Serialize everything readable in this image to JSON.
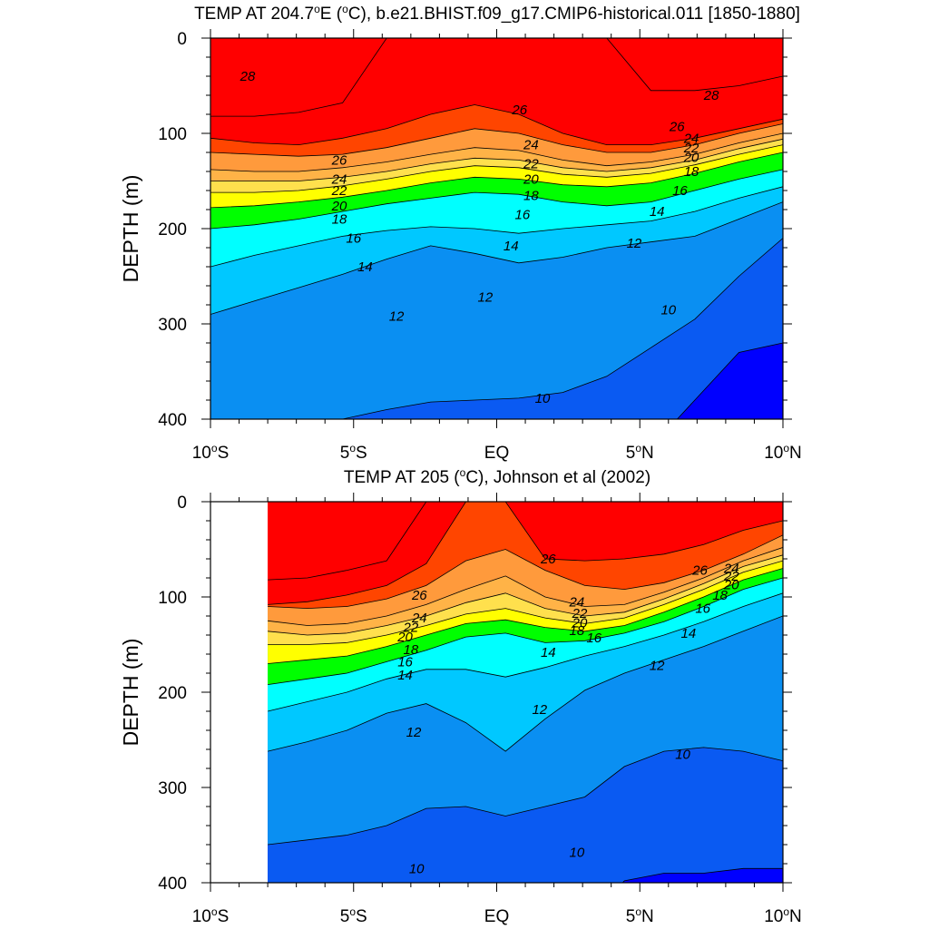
{
  "chart_data": [
    {
      "type": "contour",
      "title": "TEMP AT 204.7ºE (ºC), b.e21.BHIST.f09_g17.CMIP6-historical.011 [1850-1880]",
      "title_main": "TEMP AT 204.7",
      "title_rest": "E (",
      "title_unit": "C), b.e21.BHIST.f09_g17.CMIP6-historical.011 [1850-1880]",
      "ylabel": "DEPTH (m)",
      "xlim": [
        -10,
        10
      ],
      "ylim": [
        400,
        0
      ],
      "xticks": [
        -10,
        -5,
        0,
        5,
        10
      ],
      "xtick_labels": [
        "10",
        "5",
        "EQ",
        "5",
        "10"
      ],
      "xtick_suffixes": [
        "S",
        "S",
        "",
        "N",
        "N"
      ],
      "yticks": [
        0,
        100,
        200,
        300,
        400
      ],
      "ytick_labels": [
        "0",
        "100",
        "200",
        "300",
        "400"
      ],
      "data_xrange": [
        -10,
        10
      ],
      "contour_interval": 1,
      "isotherms": [
        {
          "value": 28,
          "depth": [
            82,
            82,
            78,
            68,
            0,
            0,
            0,
            0,
            0,
            0,
            55,
            55,
            50,
            40
          ]
        },
        {
          "value": 27,
          "depth": [
            105,
            110,
            112,
            105,
            95,
            80,
            70,
            80,
            100,
            112,
            112,
            105,
            95,
            85
          ]
        },
        {
          "value": 26,
          "depth": [
            120,
            122,
            124,
            122,
            115,
            105,
            95,
            100,
            112,
            120,
            120,
            112,
            100,
            90
          ]
        },
        {
          "value": 24,
          "depth": [
            138,
            140,
            140,
            136,
            130,
            122,
            115,
            118,
            128,
            134,
            130,
            122,
            110,
            100
          ]
        },
        {
          "value": 22,
          "depth": [
            150,
            150,
            150,
            146,
            140,
            132,
            126,
            128,
            136,
            140,
            136,
            128,
            116,
            106
          ]
        },
        {
          "value": 20,
          "depth": [
            162,
            162,
            160,
            155,
            148,
            140,
            134,
            136,
            143,
            146,
            142,
            133,
            122,
            112
          ]
        },
        {
          "value": 18,
          "depth": [
            178,
            176,
            172,
            167,
            160,
            152,
            146,
            148,
            154,
            156,
            152,
            142,
            130,
            120
          ]
        },
        {
          "value": 16,
          "depth": [
            200,
            196,
            190,
            182,
            174,
            168,
            162,
            164,
            172,
            176,
            172,
            160,
            148,
            138
          ]
        },
        {
          "value": 14,
          "depth": [
            240,
            228,
            218,
            208,
            202,
            198,
            200,
            205,
            200,
            196,
            192,
            182,
            168,
            156
          ]
        },
        {
          "value": 12,
          "depth": [
            290,
            276,
            262,
            248,
            232,
            218,
            226,
            236,
            230,
            220,
            214,
            208,
            190,
            172
          ]
        },
        {
          "value": 10,
          "depth": [
            430,
            420,
            410,
            400,
            390,
            382,
            380,
            378,
            372,
            355,
            325,
            295,
            250,
            210
          ]
        },
        {
          "value": 9,
          "depth": [
            500,
            500,
            500,
            500,
            500,
            500,
            500,
            500,
            500,
            500,
            430,
            380,
            330,
            320
          ]
        }
      ],
      "contour_labels": [
        {
          "text": "28",
          "x": -8.7,
          "depth": 40
        },
        {
          "text": "28",
          "x": 7.5,
          "depth": 60
        },
        {
          "text": "26",
          "x": 0.8,
          "depth": 75
        },
        {
          "text": "26",
          "x": 6.3,
          "depth": 93
        },
        {
          "text": "26",
          "x": -5.5,
          "depth": 128
        },
        {
          "text": "24",
          "x": 1.2,
          "depth": 112
        },
        {
          "text": "24",
          "x": 6.8,
          "depth": 105
        },
        {
          "text": "24",
          "x": -5.5,
          "depth": 148
        },
        {
          "text": "22",
          "x": 1.2,
          "depth": 132
        },
        {
          "text": "22",
          "x": 6.8,
          "depth": 115
        },
        {
          "text": "22",
          "x": -5.5,
          "depth": 160
        },
        {
          "text": "20",
          "x": 1.2,
          "depth": 148
        },
        {
          "text": "20",
          "x": 6.8,
          "depth": 125
        },
        {
          "text": "20",
          "x": -5.5,
          "depth": 176
        },
        {
          "text": "18",
          "x": 1.2,
          "depth": 165
        },
        {
          "text": "18",
          "x": 6.8,
          "depth": 140
        },
        {
          "text": "18",
          "x": -5.5,
          "depth": 190
        },
        {
          "text": "16",
          "x": 0.9,
          "depth": 185
        },
        {
          "text": "16",
          "x": 6.4,
          "depth": 160
        },
        {
          "text": "16",
          "x": -5.0,
          "depth": 210
        },
        {
          "text": "14",
          "x": 0.5,
          "depth": 218
        },
        {
          "text": "14",
          "x": 5.6,
          "depth": 182
        },
        {
          "text": "14",
          "x": -4.6,
          "depth": 240
        },
        {
          "text": "12",
          "x": 4.8,
          "depth": 215
        },
        {
          "text": "12",
          "x": -0.4,
          "depth": 272
        },
        {
          "text": "12",
          "x": -3.5,
          "depth": 292
        },
        {
          "text": "10",
          "x": 6.0,
          "depth": 285
        },
        {
          "text": "10",
          "x": 1.6,
          "depth": 378
        }
      ]
    },
    {
      "type": "contour",
      "title": "TEMP AT 205 (ºC), Johnson et al (2002)",
      "title_main": "TEMP AT 205 (",
      "title_unit": "C), Johnson et al (2002)",
      "ylabel": "DEPTH (m)",
      "xlim": [
        -10,
        10
      ],
      "ylim": [
        400,
        0
      ],
      "xticks": [
        -10,
        -5,
        0,
        5,
        10
      ],
      "xtick_labels": [
        "10",
        "5",
        "EQ",
        "5",
        "10"
      ],
      "xtick_suffixes": [
        "S",
        "S",
        "",
        "N",
        "N"
      ],
      "yticks": [
        0,
        100,
        200,
        300,
        400
      ],
      "ytick_labels": [
        "0",
        "100",
        "200",
        "300",
        "400"
      ],
      "data_xrange": [
        -8,
        10
      ],
      "contour_interval": 1,
      "isotherms": [
        {
          "value": 28,
          "depth": [
            82,
            80,
            72,
            62,
            0,
            0,
            0,
            0,
            0,
            0,
            0,
            0,
            0,
            0
          ]
        },
        {
          "value": 27,
          "depth": [
            108,
            105,
            98,
            88,
            65,
            0,
            0,
            60,
            62,
            60,
            55,
            45,
            30,
            20
          ]
        },
        {
          "value": 26,
          "depth": [
            110,
            112,
            110,
            102,
            88,
            62,
            50,
            72,
            88,
            92,
            85,
            72,
            55,
            35
          ]
        },
        {
          "value": 24,
          "depth": [
            125,
            130,
            128,
            120,
            108,
            92,
            78,
            100,
            110,
            108,
            95,
            80,
            62,
            48
          ]
        },
        {
          "value": 22,
          "depth": [
            136,
            140,
            138,
            130,
            120,
            106,
            96,
            112,
            120,
            116,
            102,
            86,
            68,
            56
          ]
        },
        {
          "value": 20,
          "depth": [
            150,
            150,
            148,
            140,
            130,
            118,
            112,
            122,
            128,
            122,
            108,
            92,
            74,
            62
          ]
        },
        {
          "value": 18,
          "depth": [
            170,
            166,
            162,
            152,
            140,
            128,
            124,
            132,
            136,
            130,
            116,
            100,
            82,
            70
          ]
        },
        {
          "value": 16,
          "depth": [
            192,
            186,
            180,
            168,
            156,
            142,
            138,
            148,
            146,
            138,
            126,
            110,
            92,
            80
          ]
        },
        {
          "value": 14,
          "depth": [
            220,
            210,
            200,
            186,
            176,
            176,
            184,
            174,
            162,
            152,
            140,
            126,
            110,
            96
          ]
        },
        {
          "value": 12,
          "depth": [
            262,
            252,
            240,
            222,
            212,
            232,
            262,
            228,
            198,
            180,
            166,
            152,
            136,
            120
          ]
        },
        {
          "value": 10,
          "depth": [
            360,
            355,
            350,
            340,
            322,
            320,
            330,
            320,
            310,
            278,
            262,
            258,
            262,
            272
          ]
        },
        {
          "value": 9,
          "depth": [
            500,
            500,
            500,
            500,
            500,
            500,
            500,
            500,
            440,
            398,
            390,
            390,
            385,
            385
          ]
        }
      ],
      "contour_labels": [
        {
          "text": "26",
          "x": 1.8,
          "depth": 60
        },
        {
          "text": "26",
          "x": 7.1,
          "depth": 72
        },
        {
          "text": "26",
          "x": -2.7,
          "depth": 98
        },
        {
          "text": "24",
          "x": 2.8,
          "depth": 105
        },
        {
          "text": "24",
          "x": 8.2,
          "depth": 70
        },
        {
          "text": "24",
          "x": -2.7,
          "depth": 122
        },
        {
          "text": "22",
          "x": 2.9,
          "depth": 117
        },
        {
          "text": "22",
          "x": 8.2,
          "depth": 78
        },
        {
          "text": "22",
          "x": -3.0,
          "depth": 132
        },
        {
          "text": "20",
          "x": 2.9,
          "depth": 127
        },
        {
          "text": "20",
          "x": 8.2,
          "depth": 87
        },
        {
          "text": "20",
          "x": -3.2,
          "depth": 142
        },
        {
          "text": "18",
          "x": 2.8,
          "depth": 135
        },
        {
          "text": "18",
          "x": 7.8,
          "depth": 98
        },
        {
          "text": "18",
          "x": -3.0,
          "depth": 155
        },
        {
          "text": "16",
          "x": 3.4,
          "depth": 143
        },
        {
          "text": "16",
          "x": 7.2,
          "depth": 112
        },
        {
          "text": "16",
          "x": -3.2,
          "depth": 168
        },
        {
          "text": "14",
          "x": 1.8,
          "depth": 158
        },
        {
          "text": "14",
          "x": 6.7,
          "depth": 138
        },
        {
          "text": "14",
          "x": -3.2,
          "depth": 182
        },
        {
          "text": "12",
          "x": 5.6,
          "depth": 172
        },
        {
          "text": "12",
          "x": 1.5,
          "depth": 218
        },
        {
          "text": "12",
          "x": -2.9,
          "depth": 242
        },
        {
          "text": "10",
          "x": 6.5,
          "depth": 265
        },
        {
          "text": "10",
          "x": 2.8,
          "depth": 368
        },
        {
          "text": "10",
          "x": -2.8,
          "depth": 385
        }
      ]
    }
  ],
  "colors": {
    "9": "#0000ff",
    "10": "#0a5af2",
    "11": "#0a8ff2",
    "12": "#1aa6ff",
    "13": "#00c8ff",
    "14": "#3dddf5",
    "15": "#00ffff",
    "16": "#2bff9e",
    "17": "#00ff00",
    "18": "#9bff00",
    "19": "#ffff00",
    "20": "#fff066",
    "21": "#ffe04d",
    "22": "#ffcc4d",
    "23": "#ffb347",
    "24": "#ffa040",
    "25": "#ff9a3c",
    "26": "#f58c1e",
    "27": "#ff4500",
    "28": "#ff0000"
  }
}
